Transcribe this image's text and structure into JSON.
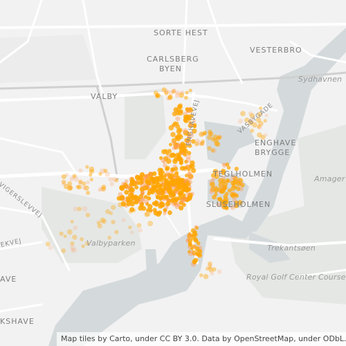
{
  "labels": {
    "sorte_hest": "SORTE HEST",
    "vesterbro": "VESTERBRO",
    "carlsberg_1": "CARLSBERG",
    "carlsberg_2": "BYEN",
    "valby": "VALBY",
    "sydhavnen": "Sydhavnen",
    "enghavevej": "ENGHAVEVEJ",
    "vasbygade": "VASBYGADE",
    "enghave_1": "ENGHAVE",
    "enghave_2": "BRYGGE",
    "teglholmen": "TEGLHOLMEN",
    "sluseholmen": "SLUSEHOLMEN",
    "amager": "Amager",
    "vigerslev": "VIGERSLEVVEJ",
    "valbyparken": "Valbyparken",
    "trekantsoen": "Trekantsøen",
    "royal_golf": "Royal Golf Center Course",
    "ave": "AVE",
    "kshave": "KSHAVE",
    "ekvej": "EKVEJ"
  },
  "attribution": "Map tiles by Carto, under CC BY 3.0. Data by OpenStreetMap, under ODbL.",
  "colors": {
    "land": "#f2f2f2",
    "water": "#d4dadc",
    "park": "#e6e8e6",
    "road": "#ffffff",
    "rail": "#cfcfcf",
    "point": "#ffa500",
    "point_faint": "#ff9a5a"
  }
}
